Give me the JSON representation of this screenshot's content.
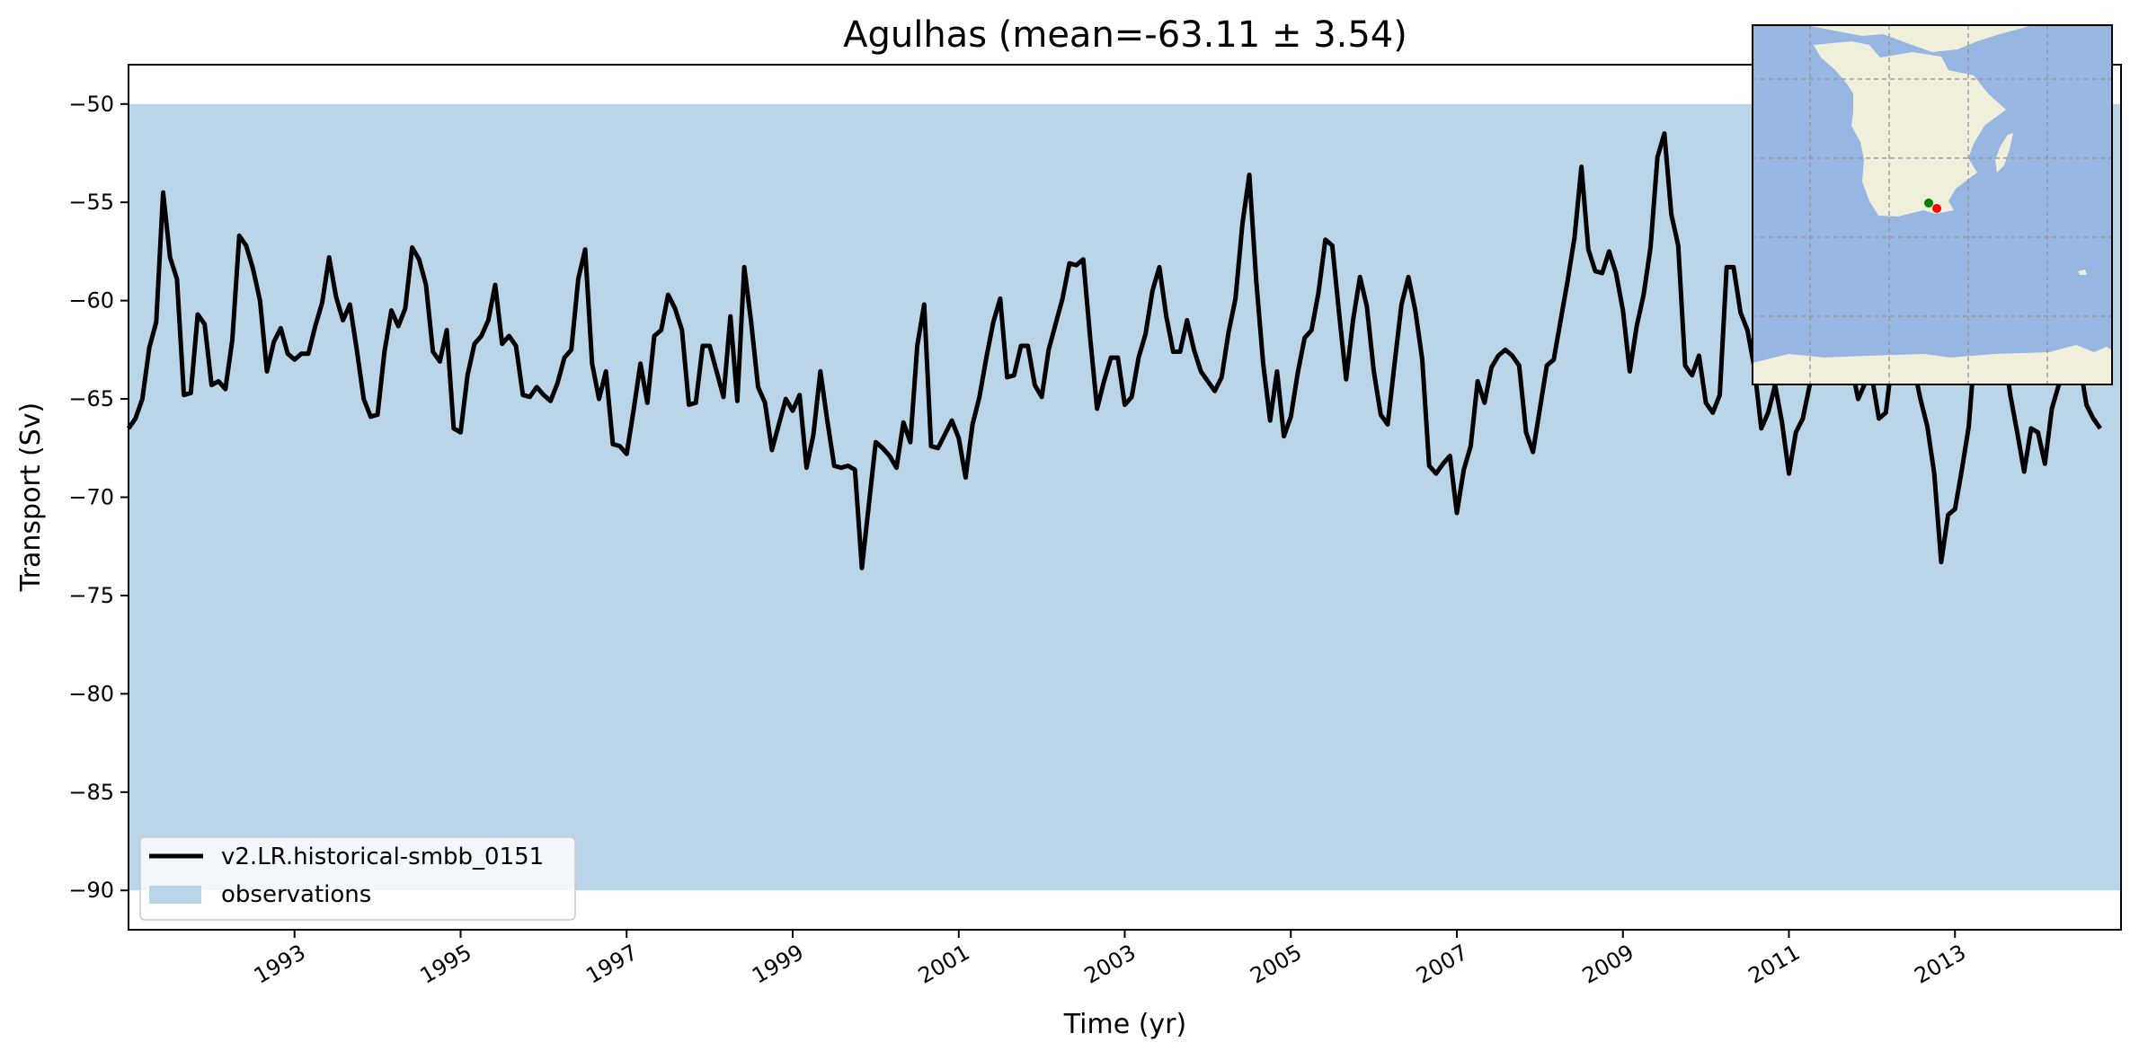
{
  "chart_data": {
    "type": "line",
    "title": "Agulhas (mean=-63.11 ± 3.54)",
    "xlabel": "Time (yr)",
    "ylabel": "Transport (Sv)",
    "xlim": [
      1991.0,
      2015.0
    ],
    "ylim": [
      -92,
      -48
    ],
    "xticks": [
      1993,
      1995,
      1997,
      1999,
      2001,
      2003,
      2005,
      2007,
      2009,
      2011,
      2013
    ],
    "yticks": [
      -50,
      -55,
      -60,
      -65,
      -70,
      -75,
      -80,
      -85,
      -90
    ],
    "grid": false,
    "legend_position": "lower-left",
    "observations_band": {
      "name": "observations",
      "min": -90,
      "max": -50,
      "color": "#bad4e8"
    },
    "series": [
      {
        "name": "v2.LR.historical-smbb_0151",
        "color": "#000000",
        "x_start": 1991.0,
        "x_step_months": 1,
        "values": [
          -66.5,
          -66.0,
          -65.0,
          -62.4,
          -61.1,
          -54.5,
          -57.8,
          -58.9,
          -64.8,
          -64.7,
          -60.7,
          -61.2,
          -64.3,
          -64.1,
          -64.5,
          -62.0,
          -56.7,
          -57.2,
          -58.4,
          -60.0,
          -63.6,
          -62.1,
          -61.4,
          -62.7,
          -63.0,
          -62.7,
          -62.7,
          -61.3,
          -60.1,
          -57.8,
          -59.8,
          -61.0,
          -60.2,
          -62.5,
          -65.0,
          -65.9,
          -65.8,
          -62.6,
          -60.5,
          -61.3,
          -60.4,
          -57.3,
          -57.9,
          -59.2,
          -62.6,
          -63.1,
          -61.5,
          -66.5,
          -66.7,
          -63.8,
          -62.2,
          -61.8,
          -61.0,
          -59.2,
          -62.2,
          -61.8,
          -62.3,
          -64.8,
          -64.9,
          -64.4,
          -64.8,
          -65.1,
          -64.2,
          -62.9,
          -62.5,
          -58.9,
          -57.4,
          -63.2,
          -65.0,
          -63.6,
          -67.3,
          -67.4,
          -67.8,
          -65.6,
          -63.2,
          -65.2,
          -61.8,
          -61.5,
          -59.7,
          -60.4,
          -61.5,
          -65.3,
          -65.2,
          -62.3,
          -62.3,
          -63.6,
          -64.9,
          -60.8,
          -65.1,
          -58.3,
          -61.1,
          -64.4,
          -65.2,
          -67.6,
          -66.3,
          -65.0,
          -65.6,
          -64.8,
          -68.5,
          -66.8,
          -63.6,
          -66.1,
          -68.4,
          -68.5,
          -68.4,
          -68.6,
          -73.6,
          -70.4,
          -67.2,
          -67.5,
          -67.9,
          -68.5,
          -66.2,
          -67.2,
          -62.3,
          -60.2,
          -67.4,
          -67.5,
          -66.8,
          -66.1,
          -67.0,
          -69.0,
          -66.3,
          -64.9,
          -62.9,
          -61.1,
          -59.9,
          -63.9,
          -63.8,
          -62.3,
          -62.3,
          -64.3,
          -64.9,
          -62.5,
          -61.2,
          -59.9,
          -58.1,
          -58.2,
          -57.9,
          -61.9,
          -65.5,
          -64.1,
          -62.9,
          -62.9,
          -65.3,
          -64.9,
          -62.9,
          -61.7,
          -59.5,
          -58.3,
          -60.8,
          -62.6,
          -62.6,
          -61.0,
          -62.5,
          -63.6,
          -64.1,
          -64.6,
          -63.9,
          -61.6,
          -59.9,
          -56.1,
          -53.6,
          -59.0,
          -63.2,
          -66.1,
          -63.6,
          -66.9,
          -65.9,
          -63.7,
          -61.9,
          -61.5,
          -59.6,
          -56.9,
          -57.2,
          -60.7,
          -64.0,
          -61.0,
          -58.8,
          -60.3,
          -63.6,
          -65.8,
          -66.3,
          -63.2,
          -60.2,
          -58.8,
          -60.5,
          -63.0,
          -68.4,
          -68.8,
          -68.3,
          -67.9,
          -70.8,
          -68.6,
          -67.4,
          -64.1,
          -65.2,
          -63.4,
          -62.8,
          -62.5,
          -62.8,
          -63.3,
          -66.7,
          -67.7,
          -65.5,
          -63.3,
          -63.0,
          -61.0,
          -59.0,
          -56.8,
          -53.2,
          -57.4,
          -58.5,
          -58.6,
          -57.5,
          -58.6,
          -60.5,
          -63.6,
          -61.3,
          -59.7,
          -57.3,
          -52.7,
          -51.5,
          -55.6,
          -57.2,
          -63.3,
          -63.8,
          -62.8,
          -65.2,
          -65.7,
          -64.8,
          -58.3,
          -58.3,
          -60.6,
          -61.5,
          -63.4,
          -66.5,
          -65.7,
          -64.3,
          -66.2,
          -68.8,
          -66.7,
          -66.0,
          -64.3,
          -62.8,
          -60.8,
          -63.9,
          -63.6,
          -62.5,
          -63.3,
          -65.0,
          -64.2,
          -63.9,
          -66.0,
          -65.7,
          -62.8,
          -61.5,
          -62.3,
          -63.3,
          -65.0,
          -66.4,
          -68.8,
          -73.3,
          -70.9,
          -70.6,
          -68.6,
          -66.4,
          -61.9,
          -60.0,
          -60.7,
          -60.0,
          -62.3,
          -64.8,
          -66.7,
          -68.7,
          -66.5,
          -66.7,
          -68.3,
          -65.5,
          -64.3,
          -62.6,
          -62.9,
          -63.1,
          -65.3,
          -66.0,
          -66.5
        ]
      }
    ]
  },
  "inset_map": {
    "land_color": "#efefdb",
    "ocean_color": "#98b6e2",
    "markers": [
      {
        "label": "start",
        "color": "#008000"
      },
      {
        "label": "end",
        "color": "#ff0000"
      }
    ]
  }
}
